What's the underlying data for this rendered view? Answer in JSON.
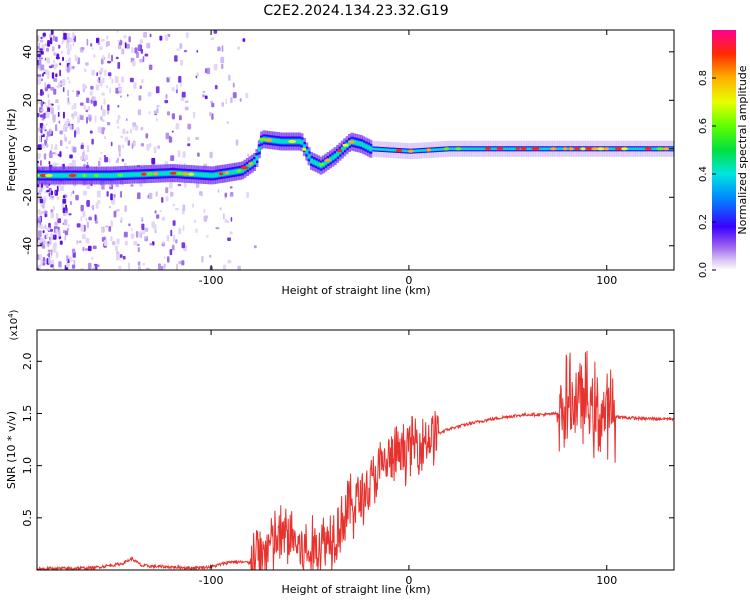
{
  "title": "C2E2.2024.134.23.32.G19",
  "chart_data": [
    {
      "type": "heatmap",
      "xlabel": "Height of straight line (km)",
      "ylabel": "Frequency (Hz)",
      "xlim": [
        -188,
        134
      ],
      "ylim": [
        -50,
        49
      ],
      "xticks": [
        -100,
        0,
        100
      ],
      "yticks": [
        -40,
        -20,
        0,
        20,
        40
      ],
      "colorbar": {
        "label": "Normalized spectral amplitude",
        "range": [
          0,
          1
        ],
        "ticks": [
          0.0,
          0.2,
          0.4,
          0.6,
          0.8
        ]
      },
      "ridge": [
        {
          "x": -188,
          "y": -11
        },
        {
          "x": -150,
          "y": -11
        },
        {
          "x": -120,
          "y": -10
        },
        {
          "x": -100,
          "y": -11
        },
        {
          "x": -85,
          "y": -9
        },
        {
          "x": -78,
          "y": -5
        },
        {
          "x": -75,
          "y": 4
        },
        {
          "x": -65,
          "y": 3
        },
        {
          "x": -55,
          "y": 3
        },
        {
          "x": -50,
          "y": -5
        },
        {
          "x": -45,
          "y": -7
        },
        {
          "x": -38,
          "y": -3
        },
        {
          "x": -30,
          "y": 3
        },
        {
          "x": -25,
          "y": 2
        },
        {
          "x": -20,
          "y": 0
        },
        {
          "x": 0,
          "y": -1
        },
        {
          "x": 20,
          "y": 0
        },
        {
          "x": 134,
          "y": 0
        }
      ]
    },
    {
      "type": "line",
      "xlabel": "Height of straight line (km)",
      "ylabel": "SNR (10 * v/v)",
      "ylabel_scale": "(x10",
      "ylabel_scale_exp": "4",
      "ylabel_scale_close": ")",
      "xlim": [
        -188,
        134
      ],
      "ylim": [
        0,
        23000
      ],
      "xticks": [
        -100,
        0,
        100
      ],
      "yticks": [
        5000,
        10000,
        15000,
        20000
      ],
      "ytick_labels": [
        "0.5",
        "1.0",
        "1.5",
        "2.0"
      ],
      "color": "#e8322e",
      "series": [
        {
          "values": [
            [
              -188,
              100
            ],
            [
              -160,
              200
            ],
            [
              -145,
              600
            ],
            [
              -140,
              1100
            ],
            [
              -135,
              400
            ],
            [
              -110,
              200
            ],
            [
              -100,
              300
            ],
            [
              -90,
              800
            ],
            [
              -80,
              700
            ],
            [
              -75,
              1500
            ],
            [
              -70,
              2500
            ],
            [
              -60,
              3500
            ],
            [
              -55,
              2000
            ],
            [
              -50,
              1500
            ],
            [
              -45,
              2500
            ],
            [
              -40,
              3200
            ],
            [
              -35,
              4500
            ],
            [
              -30,
              6000
            ],
            [
              -25,
              6800
            ],
            [
              -20,
              8000
            ],
            [
              -15,
              9500
            ],
            [
              -10,
              10500
            ],
            [
              -5,
              11000
            ],
            [
              0,
              11800
            ],
            [
              10,
              12700
            ],
            [
              20,
              13500
            ],
            [
              30,
              14000
            ],
            [
              40,
              14400
            ],
            [
              50,
              14700
            ],
            [
              60,
              14900
            ],
            [
              70,
              14900
            ],
            [
              75,
              15000
            ],
            [
              80,
              15800
            ],
            [
              85,
              16500
            ],
            [
              90,
              16000
            ],
            [
              95,
              15000
            ],
            [
              100,
              14800
            ],
            [
              110,
              14600
            ],
            [
              120,
              14500
            ],
            [
              134,
              14500
            ]
          ]
        }
      ]
    }
  ]
}
